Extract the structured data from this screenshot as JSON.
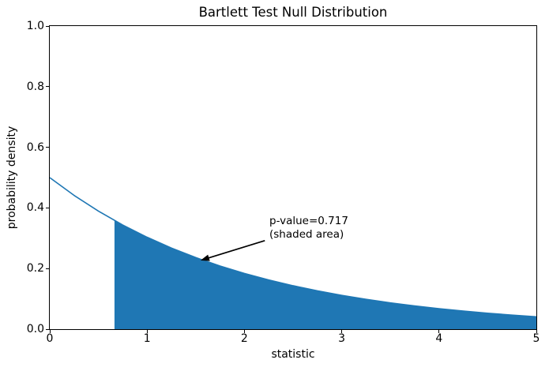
{
  "figure": {
    "background": "#ffffff",
    "text_color": "#000000",
    "spine_color": "#000000"
  },
  "chart_data": {
    "type": "area",
    "title": "Bartlett Test Null Distribution",
    "xlabel": "statistic",
    "ylabel": "probability density",
    "xlim": [
      0,
      5
    ],
    "ylim": [
      0,
      1
    ],
    "xticks": [
      0,
      1,
      2,
      3,
      4,
      5
    ],
    "xticklabels": [
      "0",
      "1",
      "2",
      "3",
      "4",
      "5"
    ],
    "yticks": [
      0,
      0.2,
      0.4,
      0.6,
      0.8,
      1.0
    ],
    "yticklabels": [
      "0.0",
      "0.2",
      "0.4",
      "0.6",
      "0.8",
      "1.0"
    ],
    "grid": false,
    "legend": "none",
    "curve_color": "#1f77b4",
    "fill_color": "#1f77b4",
    "p_value": 0.717,
    "shade_from": 0.665,
    "shade_to": 5,
    "series": [
      {
        "name": "null-distribution-density",
        "x": [
          0,
          0.25,
          0.5,
          0.75,
          1,
          1.25,
          1.5,
          1.75,
          2,
          2.25,
          2.5,
          2.75,
          3,
          3.25,
          3.5,
          3.75,
          4,
          4.25,
          4.5,
          4.75,
          5
        ],
        "y": [
          0.5,
          0.4413,
          0.3894,
          0.3436,
          0.3033,
          0.2676,
          0.2362,
          0.2084,
          0.1839,
          0.1623,
          0.1433,
          0.1264,
          0.1116,
          0.0985,
          0.0869,
          0.0767,
          0.0677,
          0.0597,
          0.0527,
          0.0465,
          0.041
        ]
      }
    ],
    "annotation": {
      "text": "p-value=0.717\n(shaded area)",
      "text_xy": [
        2.26,
        0.378
      ],
      "arrow_from_xy": [
        2.21,
        0.292
      ],
      "arrow_to_xy": [
        1.55,
        0.227
      ],
      "arrow_color": "#000000"
    }
  }
}
